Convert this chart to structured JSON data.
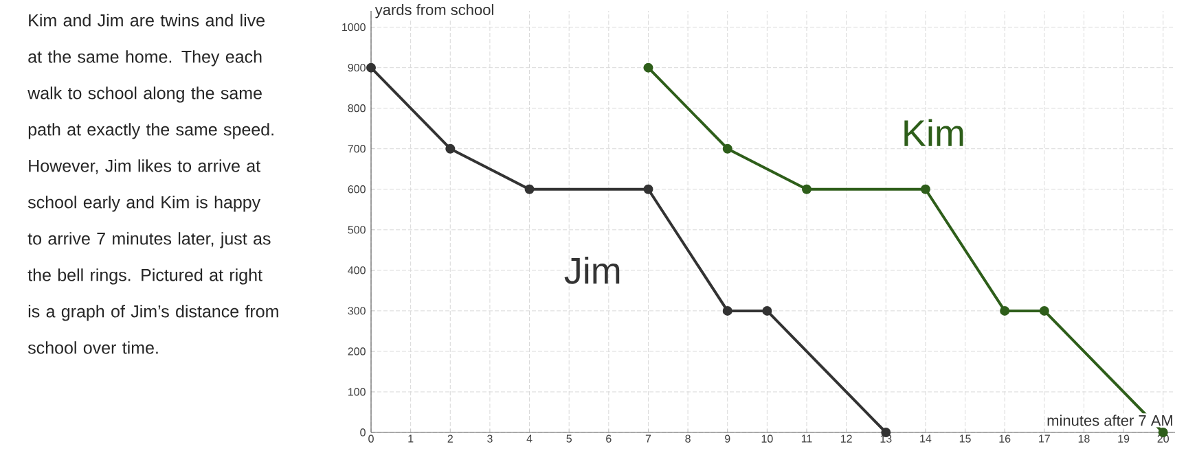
{
  "chart_data": {
    "type": "line",
    "series": [
      {
        "name": "Jim",
        "color": "#333333",
        "x": [
          0,
          2,
          4,
          7,
          9,
          10,
          13
        ],
        "values": [
          900,
          700,
          600,
          600,
          300,
          300,
          0
        ]
      },
      {
        "name": "Kim",
        "color": "#2e5e1a",
        "x": [
          7,
          9,
          11,
          14,
          16,
          17,
          20
        ],
        "values": [
          900,
          700,
          600,
          600,
          300,
          300,
          0
        ]
      }
    ],
    "xlabel": "minutes after 7 AM",
    "ylabel": "yards from school",
    "xlim": [
      0,
      20.3
    ],
    "ylim": [
      0,
      1040
    ],
    "xticks": [
      0,
      1,
      2,
      3,
      4,
      5,
      6,
      7,
      8,
      9,
      10,
      11,
      12,
      13,
      14,
      15,
      16,
      17,
      18,
      19,
      20
    ],
    "yticks": [
      0,
      100,
      200,
      300,
      400,
      500,
      600,
      700,
      800,
      900,
      1000
    ],
    "grid": true,
    "marker": "circle",
    "line_style": "solid",
    "annotations": [
      "Kim and Jim are twins and live at the same home. They each walk to school along the same path at exactly the same speed. However, Jim likes to arrive at school early and Kim is happy to arrive 7 minutes later, just as the bell rings. Pictured at right is a graph of Jim’s distance from school over time."
    ]
  }
}
